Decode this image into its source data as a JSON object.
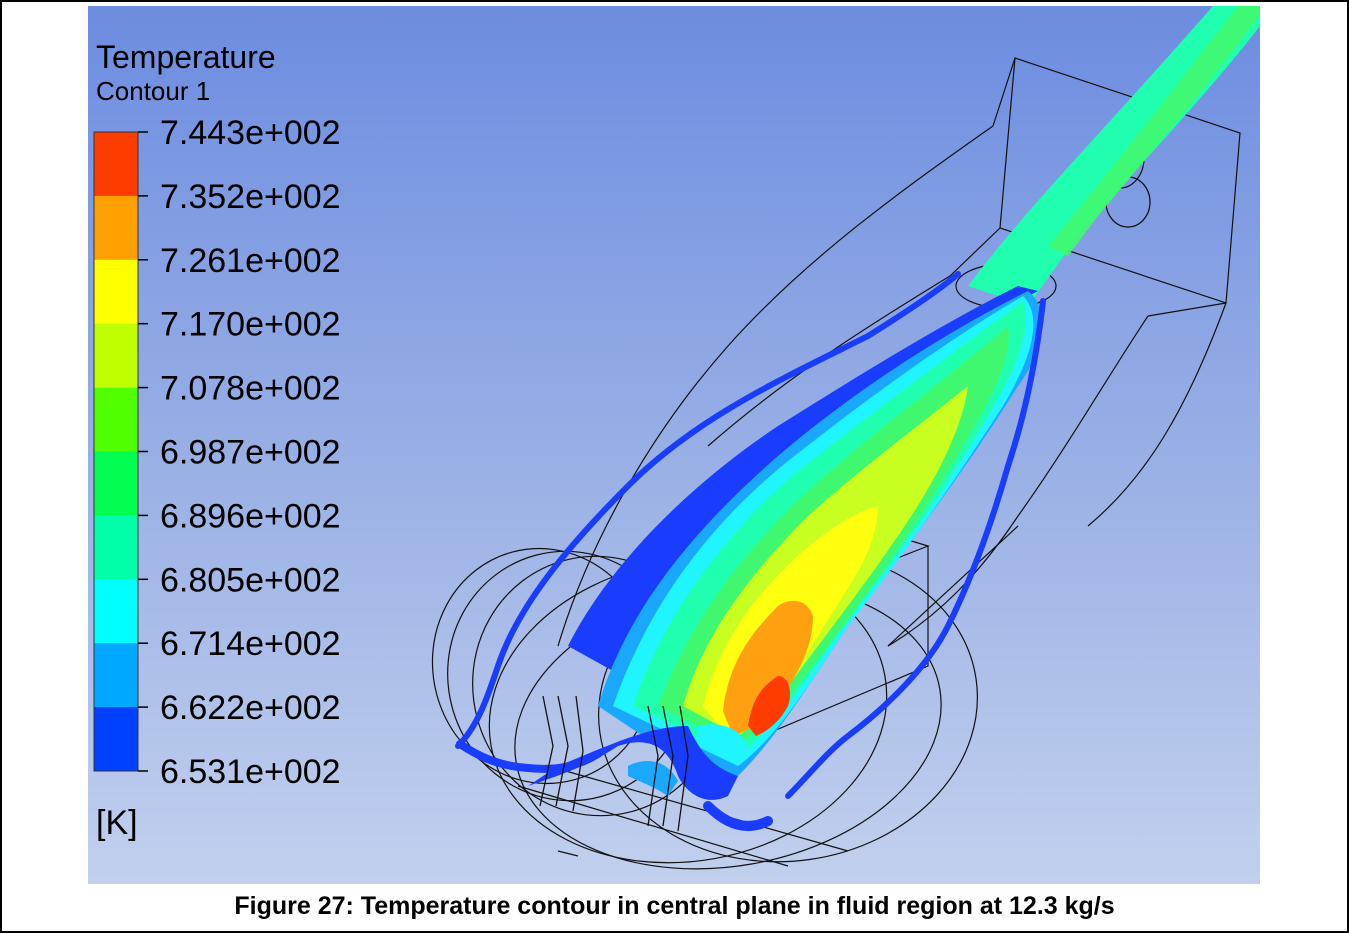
{
  "legend": {
    "title": "Temperature",
    "subtitle": "Contour 1",
    "ticks": [
      "7.443e+002",
      "7.352e+002",
      "7.261e+002",
      "7.170e+002",
      "7.078e+002",
      "6.987e+002",
      "6.896e+002",
      "6.805e+002",
      "6.714e+002",
      "6.622e+002",
      "6.531e+002"
    ],
    "unit": "[K]",
    "colors": [
      "#ff3c00",
      "#ffa000",
      "#ffff00",
      "#c0ff00",
      "#50ff00",
      "#00ff50",
      "#00ffa8",
      "#00ffff",
      "#00a8ff",
      "#0040ff"
    ]
  },
  "contour_colors": {
    "blue": "#1a3cff",
    "light_blue": "#1aa8ff",
    "cyan": "#20f5ff",
    "aqua": "#20ffb0",
    "green": "#40f870",
    "yellow_green": "#c8ff20",
    "yellow": "#ffff10",
    "orange": "#ffa010",
    "red": "#ff3c00"
  },
  "caption": "Figure 27: Temperature contour in central plane in fluid region at 12.3 kg/s"
}
